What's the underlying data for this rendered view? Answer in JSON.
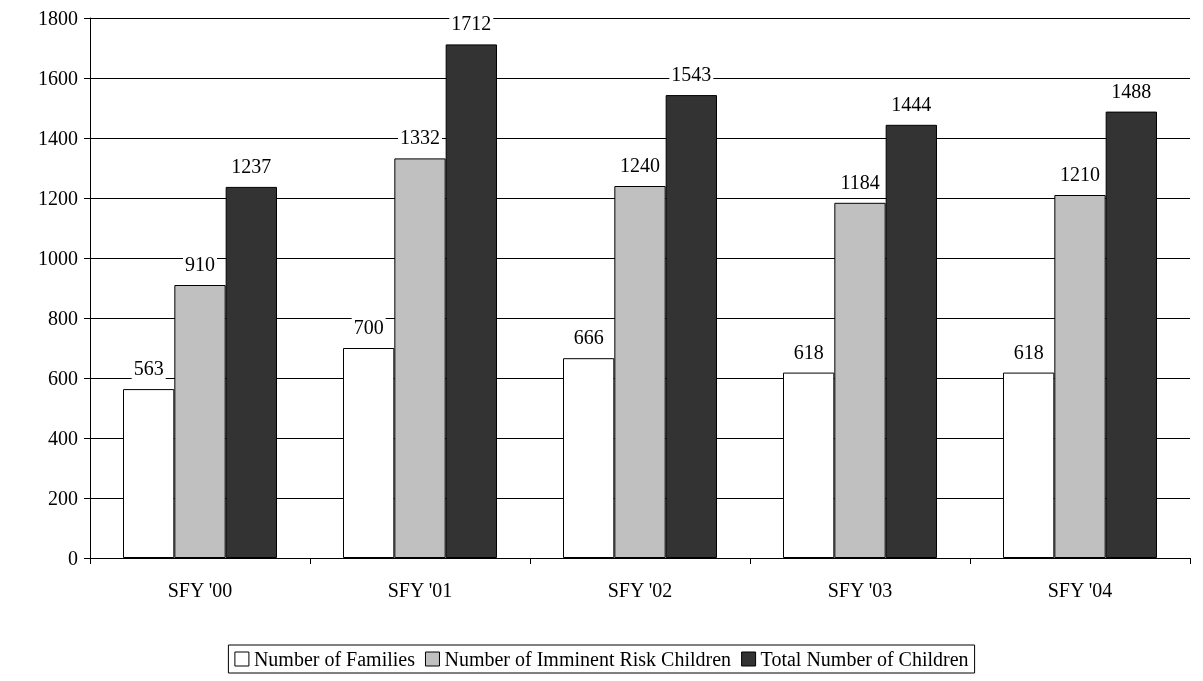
{
  "chart_data": {
    "type": "bar",
    "categories": [
      "SFY '00",
      "SFY '01",
      "SFY '02",
      "SFY '03",
      "SFY '04"
    ],
    "series": [
      {
        "name": "Number of Families",
        "color": "#ffffff",
        "values": [
          563,
          700,
          666,
          618,
          618
        ]
      },
      {
        "name": "Number of Imminent Risk Children",
        "color": "#c0c0c0",
        "values": [
          910,
          1332,
          1240,
          1184,
          1210
        ]
      },
      {
        "name": "Total Number of Children",
        "color": "#333333",
        "values": [
          1237,
          1712,
          1543,
          1444,
          1488
        ]
      }
    ],
    "ylim": [
      0,
      1800
    ],
    "yticks": [
      0,
      200,
      400,
      600,
      800,
      1000,
      1200,
      1400,
      1600,
      1800
    ],
    "grid": "y",
    "legend": "bottom",
    "data_labels": true
  }
}
